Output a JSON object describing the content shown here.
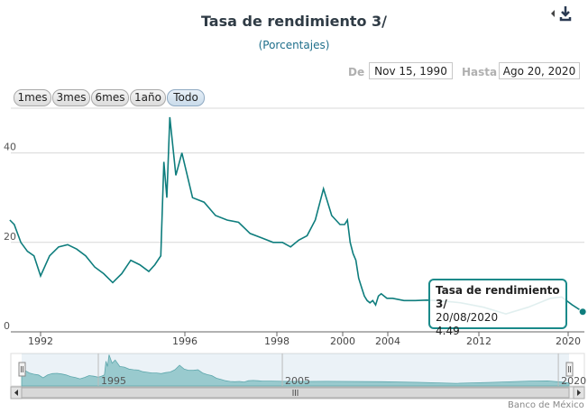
{
  "header": {
    "title": "Tasa de rendimiento 3/",
    "subtitle": "(Porcentajes)"
  },
  "range_selector": {
    "from_label": "De",
    "from_value": "Nov 15, 1990",
    "to_label": "Hasta",
    "to_value": "Ago 20, 2020",
    "buttons": [
      "1mes",
      "3mes",
      "6mes",
      "1año",
      "Todo"
    ],
    "active_button": "Todo"
  },
  "tooltip": {
    "series": "Tasa de rendimiento 3/",
    "date": "20/08/2020",
    "value": "4.49"
  },
  "navigator": {
    "labels": [
      "1995",
      "2005",
      "2020"
    ]
  },
  "credit": "Banco de México",
  "colors": {
    "series": "#0e7d7d",
    "navigator_fill": "#9fd0cf",
    "grid": "#d8d8d8",
    "tooltip_border": "#1a8a8a"
  },
  "chart_data": {
    "type": "line",
    "title": "Tasa de rendimiento 3/",
    "subtitle": "(Porcentajes)",
    "x_tick_labels": [
      "1992",
      "1996",
      "1998",
      "2000",
      "2004",
      "2012",
      "2020"
    ],
    "y_tick_labels": [
      "0",
      "20",
      "40"
    ],
    "ylim": [
      0,
      50
    ],
    "grid": true,
    "legend": "none",
    "series": [
      {
        "values": [
          [
            "1990-11",
            25.0
          ],
          [
            "1991-01",
            24.0
          ],
          [
            "1991-04",
            20.0
          ],
          [
            "1991-07",
            18.0
          ],
          [
            "1991-10",
            17.0
          ],
          [
            "1992-01",
            12.5
          ],
          [
            "1992-04",
            17.0
          ],
          [
            "1992-07",
            19.0
          ],
          [
            "1992-10",
            19.5
          ],
          [
            "1993-01",
            18.5
          ],
          [
            "1993-04",
            17.0
          ],
          [
            "1993-07",
            14.5
          ],
          [
            "1993-10",
            13.0
          ],
          [
            "1994-01",
            11.0
          ],
          [
            "1994-04",
            13.0
          ],
          [
            "1994-07",
            16.0
          ],
          [
            "1994-10",
            15.0
          ],
          [
            "1995-01",
            13.5
          ],
          [
            "1995-03",
            15.0
          ],
          [
            "1995-05",
            17.0
          ],
          [
            "1995-06",
            38.0
          ],
          [
            "1995-07",
            30.0
          ],
          [
            "1995-08",
            48.0
          ],
          [
            "1995-10",
            35.0
          ],
          [
            "1995-12",
            40.0
          ],
          [
            "1996-03",
            30.0
          ],
          [
            "1996-06",
            29.0
          ],
          [
            "1996-09",
            26.0
          ],
          [
            "1996-12",
            25.0
          ],
          [
            "1997-03",
            24.5
          ],
          [
            "1997-06",
            22.0
          ],
          [
            "1997-09",
            21.0
          ],
          [
            "1997-12",
            20.0
          ],
          [
            "1998-03",
            20.0
          ],
          [
            "1998-06",
            19.0
          ],
          [
            "1998-09",
            20.5
          ],
          [
            "1998-12",
            21.5
          ],
          [
            "1999-03",
            25.0
          ],
          [
            "1999-06",
            32.0
          ],
          [
            "1999-09",
            26.0
          ],
          [
            "1999-12",
            24.0
          ],
          [
            "2000-03",
            24.0
          ],
          [
            "2000-06",
            25.0
          ],
          [
            "2000-09",
            20.0
          ],
          [
            "2000-12",
            17.5
          ],
          [
            "2001-03",
            16.0
          ],
          [
            "2001-06",
            12.0
          ],
          [
            "2001-09",
            10.0
          ],
          [
            "2001-12",
            8.0
          ],
          [
            "2002-03",
            7.0
          ],
          [
            "2002-06",
            6.5
          ],
          [
            "2002-09",
            7.0
          ],
          [
            "2002-12",
            6.0
          ],
          [
            "2003-03",
            8.0
          ],
          [
            "2003-06",
            8.5
          ],
          [
            "2003-09",
            8.0
          ],
          [
            "2003-12",
            7.5
          ],
          [
            "2004-06",
            7.5
          ],
          [
            "2005-06",
            7.0
          ],
          [
            "2006-06",
            7.0
          ],
          [
            "2007-06",
            7.1
          ],
          [
            "2008-06",
            7.0
          ],
          [
            "2010-06",
            6.5
          ],
          [
            "2012-06",
            5.5
          ],
          [
            "2014-06",
            4.0
          ],
          [
            "2016-06",
            5.5
          ],
          [
            "2018-06",
            7.5
          ],
          [
            "2019-06",
            7.8
          ],
          [
            "2020-03",
            6.0
          ],
          [
            "2020-08",
            4.49
          ]
        ]
      }
    ]
  }
}
